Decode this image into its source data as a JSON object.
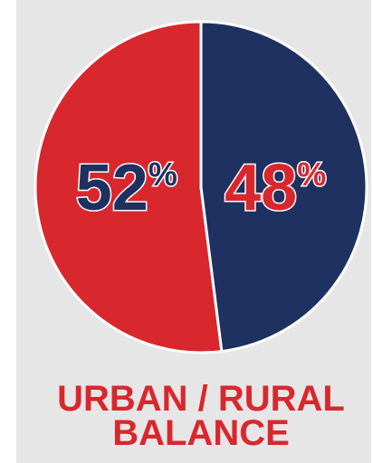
{
  "chart_data": {
    "type": "pie",
    "title": "URBAN / RURAL BALANCE",
    "values": [
      52,
      48
    ],
    "value_labels": [
      "52%",
      "48%"
    ],
    "colors": [
      "#d9272e",
      "#1e3160"
    ]
  }
}
